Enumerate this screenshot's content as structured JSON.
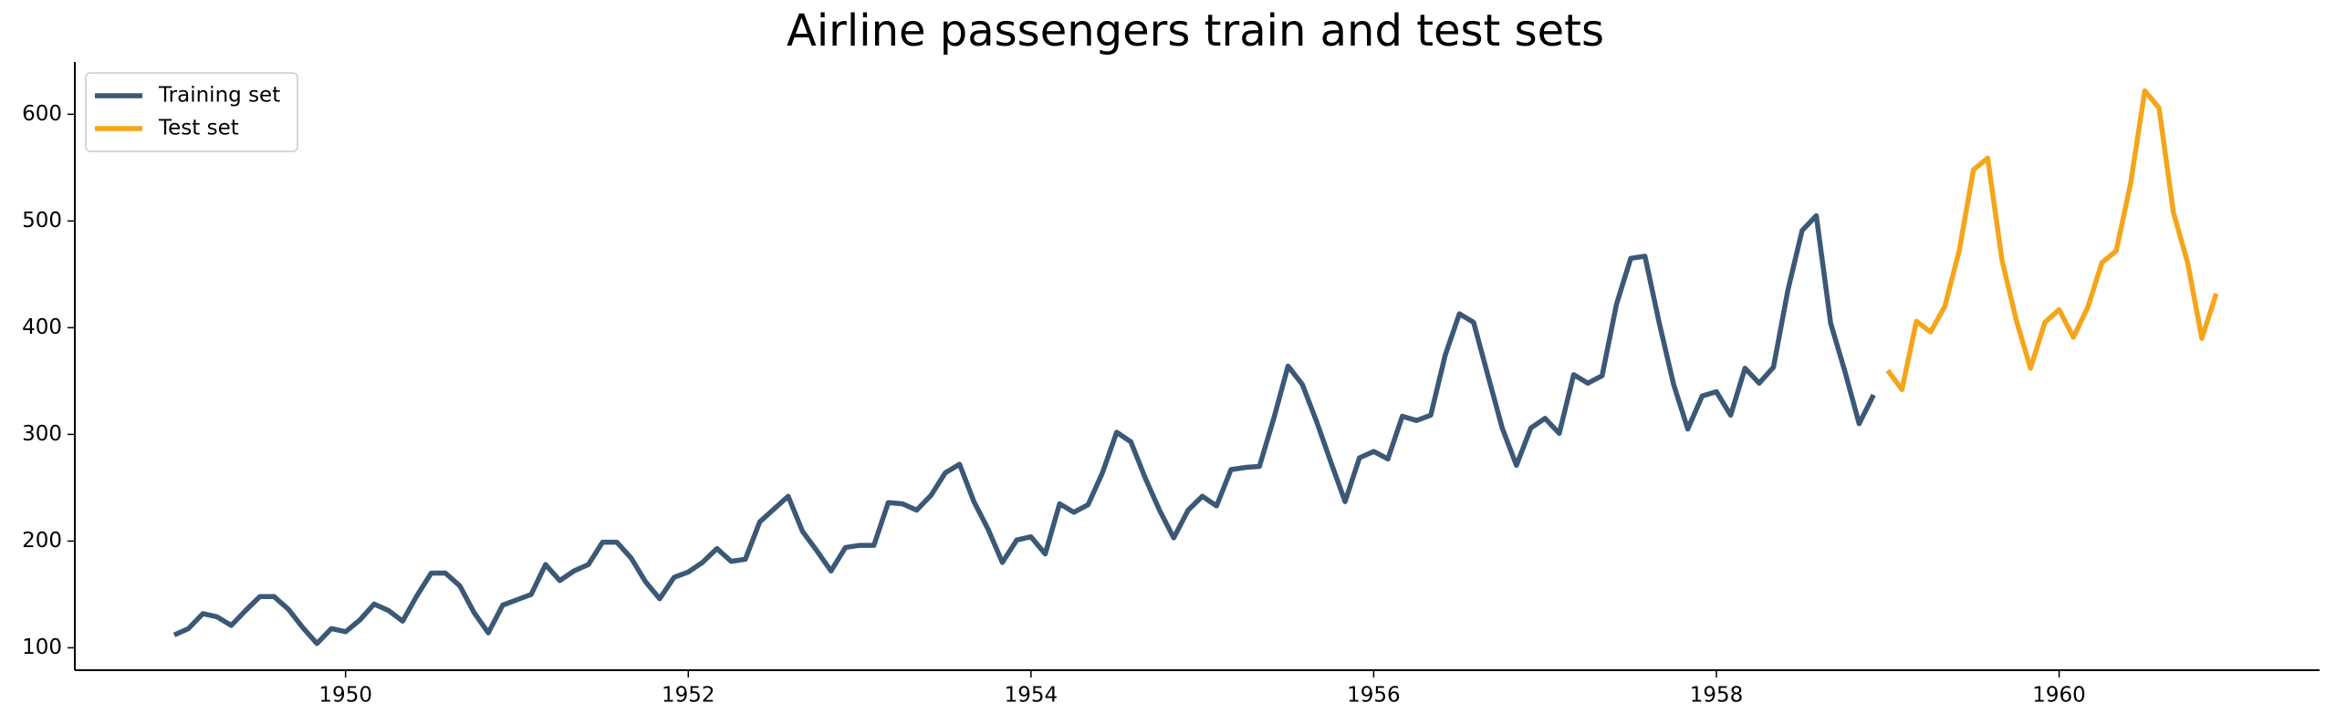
{
  "chart_data": {
    "type": "line",
    "title": "Airline passengers train and test sets",
    "xlim": [
      1948.42,
      1961.52
    ],
    "xticks": [
      1950,
      1952,
      1954,
      1956,
      1958,
      1960
    ],
    "ylim": [
      79,
      649
    ],
    "yticks": [
      100,
      200,
      300,
      400,
      500,
      600
    ],
    "grid": false,
    "legend": "upper left",
    "series": [
      {
        "name": "Training set",
        "color": "#3b5876",
        "x": [
          1949,
          1949.083,
          1949.167,
          1949.25,
          1949.333,
          1949.417,
          1949.5,
          1949.583,
          1949.667,
          1949.75,
          1949.833,
          1949.917,
          1950,
          1950.083,
          1950.167,
          1950.25,
          1950.333,
          1950.417,
          1950.5,
          1950.583,
          1950.667,
          1950.75,
          1950.833,
          1950.917,
          1951,
          1951.083,
          1951.167,
          1951.25,
          1951.333,
          1951.417,
          1951.5,
          1951.583,
          1951.667,
          1951.75,
          1951.833,
          1951.917,
          1952,
          1952.083,
          1952.167,
          1952.25,
          1952.333,
          1952.417,
          1952.5,
          1952.583,
          1952.667,
          1952.75,
          1952.833,
          1952.917,
          1953,
          1953.083,
          1953.167,
          1953.25,
          1953.333,
          1953.417,
          1953.5,
          1953.583,
          1953.667,
          1953.75,
          1953.833,
          1953.917,
          1954,
          1954.083,
          1954.167,
          1954.25,
          1954.333,
          1954.417,
          1954.5,
          1954.583,
          1954.667,
          1954.75,
          1954.833,
          1954.917,
          1955,
          1955.083,
          1955.167,
          1955.25,
          1955.333,
          1955.417,
          1955.5,
          1955.583,
          1955.667,
          1955.75,
          1955.833,
          1955.917,
          1956,
          1956.083,
          1956.167,
          1956.25,
          1956.333,
          1956.417,
          1956.5,
          1956.583,
          1956.667,
          1956.75,
          1956.833,
          1956.917,
          1957,
          1957.083,
          1957.167,
          1957.25,
          1957.333,
          1957.417,
          1957.5,
          1957.583,
          1957.667,
          1957.75,
          1957.833,
          1957.917,
          1958,
          1958.083,
          1958.167,
          1958.25,
          1958.333,
          1958.417,
          1958.5,
          1958.583,
          1958.667,
          1958.75,
          1958.833,
          1958.917
        ],
        "values": [
          112,
          118,
          132,
          129,
          121,
          135,
          148,
          148,
          136,
          119,
          104,
          118,
          115,
          126,
          141,
          135,
          125,
          149,
          170,
          170,
          158,
          133,
          114,
          140,
          145,
          150,
          178,
          163,
          172,
          178,
          199,
          199,
          184,
          162,
          146,
          166,
          171,
          180,
          193,
          181,
          183,
          218,
          230,
          242,
          209,
          191,
          172,
          194,
          196,
          196,
          236,
          235,
          229,
          243,
          264,
          272,
          237,
          211,
          180,
          201,
          204,
          188,
          235,
          227,
          234,
          264,
          302,
          293,
          259,
          229,
          203,
          229,
          242,
          233,
          267,
          269,
          270,
          315,
          364,
          347,
          312,
          274,
          237,
          278,
          284,
          277,
          317,
          313,
          318,
          374,
          413,
          405,
          355,
          306,
          271,
          306,
          315,
          301,
          356,
          348,
          355,
          422,
          465,
          467,
          404,
          347,
          305,
          336,
          340,
          318,
          362,
          348,
          363,
          435,
          491,
          505,
          404,
          359,
          310,
          337
        ]
      },
      {
        "name": "Test set",
        "color": "#f5a51b",
        "x": [
          1959,
          1959.083,
          1959.167,
          1959.25,
          1959.333,
          1959.417,
          1959.5,
          1959.583,
          1959.667,
          1959.75,
          1959.833,
          1959.917,
          1960,
          1960.083,
          1960.167,
          1960.25,
          1960.333,
          1960.417,
          1960.5,
          1960.583,
          1960.667,
          1960.75,
          1960.833,
          1960.917
        ],
        "values": [
          360,
          342,
          406,
          396,
          420,
          472,
          548,
          559,
          463,
          407,
          362,
          405,
          417,
          391,
          419,
          461,
          472,
          535,
          622,
          606,
          508,
          461,
          390,
          432
        ]
      }
    ]
  }
}
